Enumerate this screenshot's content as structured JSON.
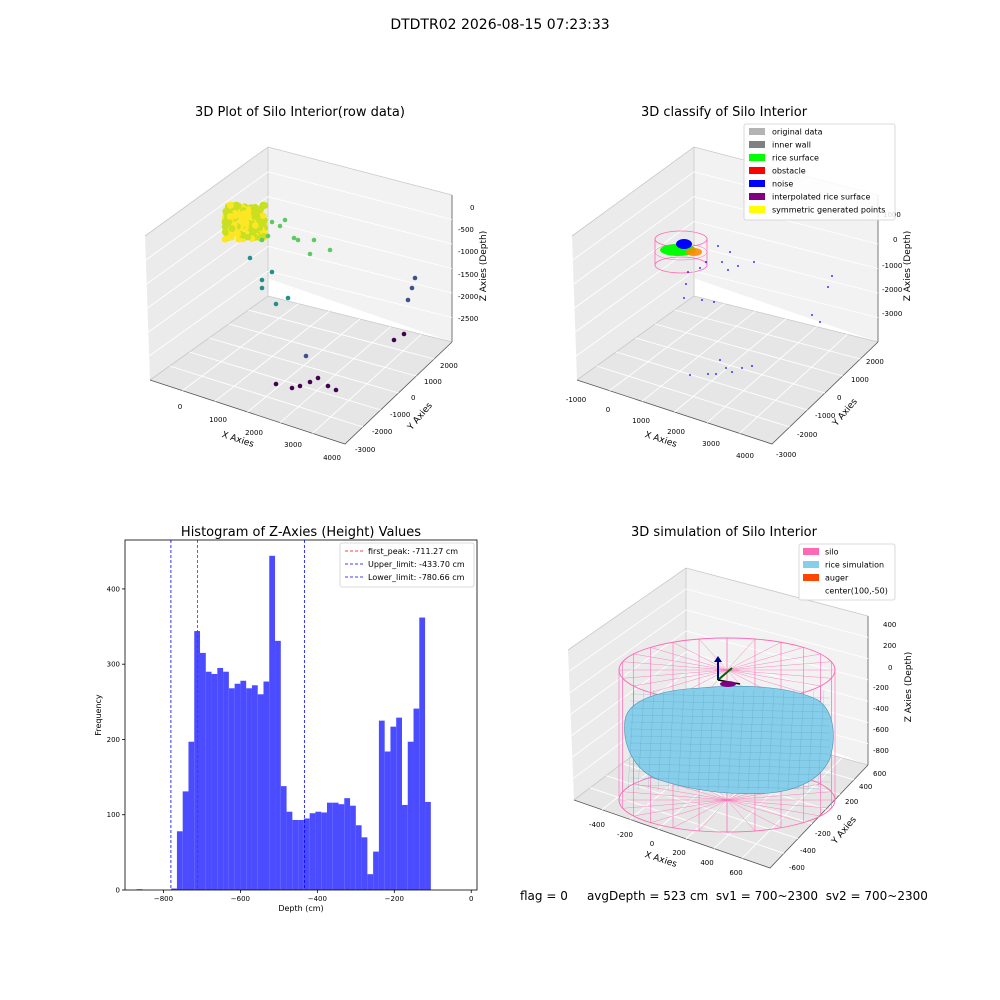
{
  "suptitle": "DTDTR02 2026-08-15 07:23:33",
  "status_line": {
    "flag": "flag = 0",
    "avg_depth": "avgDepth = 523 cm",
    "sv1": "sv1 = 700~2300",
    "sv2": "sv2 = 700~2300"
  },
  "chart_data": [
    {
      "type": "scatter",
      "title": "3D Plot of Silo Interior(row data)",
      "xlabel": "X Axies",
      "ylabel": "Y Axies",
      "zlabel": "Z Axies (Depth)",
      "x_ticks": [
        "0",
        "1000",
        "2000",
        "3000",
        "4000"
      ],
      "y_ticks": [
        "-3000",
        "-2000",
        "-1000",
        "0",
        "1000",
        "2000"
      ],
      "z_ticks": [
        "-2500",
        "-2000",
        "-1500",
        "-1000",
        "-500",
        "0"
      ],
      "colormap": [
        "#440154",
        "#3b528b",
        "#21908d",
        "#5dc963",
        "#fde725"
      ],
      "grid": true
    },
    {
      "type": "scatter",
      "title": "3D classify of Silo Interior",
      "xlabel": "X Axies",
      "ylabel": "Y Axies",
      "zlabel": "Z Axies (Depth)",
      "x_ticks": [
        "-1000",
        "0",
        "1000",
        "2000",
        "3000",
        "4000"
      ],
      "y_ticks": [
        "-3000",
        "-2000",
        "-1000",
        "0",
        "1000",
        "2000"
      ],
      "z_ticks": [
        "-3000",
        "-2000",
        "-1000",
        "0",
        "1000"
      ],
      "legend_position": "top-right",
      "legend": [
        {
          "label": "original data",
          "color": "#b3b3b3"
        },
        {
          "label": "inner wall",
          "color": "#808080"
        },
        {
          "label": "rice surface",
          "color": "#00ff00"
        },
        {
          "label": "obstacle",
          "color": "#ff0000"
        },
        {
          "label": "noise",
          "color": "#0000ff"
        },
        {
          "label": "interpolated rice surface",
          "color": "#800080"
        },
        {
          "label": "symmetric generated points",
          "color": "#ffff00"
        }
      ],
      "grid": true
    },
    {
      "type": "bar",
      "title": "Histogram of Z-Axies (Height) Values",
      "xlabel": "Depth (cm)",
      "ylabel": "Frequency",
      "xlim": [
        -900,
        15
      ],
      "ylim": [
        0,
        465
      ],
      "x_ticks": [
        "−800",
        "−600",
        "−400",
        "−200",
        "0"
      ],
      "y_ticks": [
        "0",
        "100",
        "200",
        "300",
        "400"
      ],
      "bar_color": "#4b4bff",
      "bin_width": 15,
      "bins_start": [
        -870,
        -855,
        -840,
        -825,
        -810,
        -795,
        -780,
        -765,
        -750,
        -735,
        -720,
        -705,
        -690,
        -675,
        -660,
        -645,
        -630,
        -615,
        -600,
        -585,
        -570,
        -555,
        -540,
        -525,
        -510,
        -495,
        -480,
        -465,
        -450,
        -435,
        -420,
        -405,
        -390,
        -375,
        -360,
        -345,
        -330,
        -315,
        -300,
        -285,
        -270,
        -255,
        -240,
        -225,
        -210,
        -195,
        -180,
        -165,
        -150,
        -135,
        -120,
        -105,
        -90,
        -75,
        -60,
        -45,
        -30,
        -15
      ],
      "values": [
        1,
        0,
        0,
        0,
        0,
        0,
        2,
        78,
        131,
        197,
        344,
        315,
        290,
        287,
        295,
        290,
        268,
        274,
        278,
        268,
        272,
        260,
        277,
        444,
        331,
        138,
        104,
        93,
        93,
        95,
        102,
        104,
        103,
        116,
        116,
        114,
        122,
        112,
        86,
        70,
        21,
        51,
        225,
        184,
        217,
        229,
        113,
        197,
        241,
        362,
        117,
        0,
        0,
        0,
        0,
        0,
        0,
        0
      ],
      "vlines": [
        {
          "label": "first_peak: -711.27 cm",
          "x": -711.27,
          "color": "#ff0000"
        },
        {
          "label": "Upper_limit: -433.70 cm",
          "x": -433.7,
          "color": "#0000ff"
        },
        {
          "label": "Lower_limit: -780.66 cm",
          "x": -780.66,
          "color": "#0000ff"
        }
      ],
      "legend_position": "top-right"
    },
    {
      "type": "surface",
      "title": "3D simulation of Silo Interior",
      "xlabel": "X Axies",
      "ylabel": "Y Axies",
      "zlabel": "Z Axies (Depth)",
      "x_ticks": [
        "-400",
        "-200",
        "0",
        "200",
        "400",
        "600"
      ],
      "y_ticks": [
        "-600",
        "-400",
        "-200",
        "0",
        "200",
        "400",
        "600"
      ],
      "z_ticks": [
        "-800",
        "-600",
        "-400",
        "-200",
        "0",
        "200",
        "400"
      ],
      "legend_position": "top-right",
      "legend": [
        {
          "label": "silo",
          "color": "#ff69b4"
        },
        {
          "label": "rice simulation",
          "color": "#87ceeb"
        },
        {
          "label": "auger",
          "color": "#ff4500"
        },
        {
          "label": "center(100,-50)",
          "color": "#ffffff"
        }
      ],
      "grid": true
    }
  ]
}
